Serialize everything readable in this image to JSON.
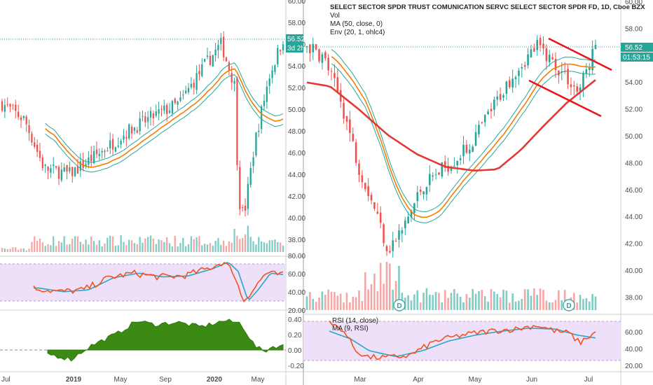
{
  "colors": {
    "up": "#26a69a",
    "down": "#ef5350",
    "vol_up": "#80cbc4",
    "vol_down": "#f4a7a5",
    "ma50": "#e53935",
    "env_mid": "#f57c00",
    "env_band": "#26a69a",
    "rsi": "#f4511e",
    "rsi_ma": "#29a6c9",
    "rsi_band": "#ede0f8",
    "osc": "#3a8a13",
    "trendline": "#e8171d",
    "price_tag": "#26a69a"
  },
  "left_panel": {
    "price_tag": "56.52",
    "countdown_tag": "3d 2h",
    "price_axis_ticks": [
      "60.00",
      "58.00",
      "56.00",
      "54.00",
      "52.00",
      "50.00",
      "48.00",
      "46.00",
      "44.00",
      "42.00",
      "40.00",
      "38.00"
    ],
    "rsi_axis_ticks": [
      "80.00",
      "60.00",
      "40.00",
      "20.00"
    ],
    "osc_axis_ticks": [
      "0.40",
      "0.20",
      "0.00",
      "-0.20"
    ],
    "time_labels": [
      "Jul",
      "2019",
      "May",
      "Sep",
      "2020",
      "May"
    ]
  },
  "right_panel": {
    "legend_title": "SELECT SECTOR SPDR TRUST COMUNICATION SERVC SELECT SECTOR SPDR FD, 1D, Cboe BZX",
    "legend_vol": "Vol",
    "legend_ma": "MA (50, close, 0)",
    "legend_env": "Env (20, 1, ohlc4)",
    "rsi_legend_1": "RSI (14, close)",
    "rsi_legend_2": "MA (9, RSI)",
    "price_tag": "56.52",
    "countdown_tag": "01:53:15",
    "dividend_marker": "D",
    "price_axis_ticks": [
      "60.00",
      "58.00",
      "56.00",
      "54.00",
      "52.00",
      "50.00",
      "48.00",
      "46.00",
      "44.00",
      "42.00",
      "40.00",
      "38.00"
    ],
    "rsi_axis_ticks": [
      "60.00",
      "40.00",
      "20.00"
    ],
    "time_labels": [
      "Mar",
      "Apr",
      "May",
      "Jun",
      "Jul"
    ]
  },
  "chart_data": [
    {
      "type": "candlestick",
      "title": "",
      "timeframe": "weekly (approx.)",
      "x": [
        "2018-07",
        "2018-09",
        "2018-11",
        "2019-01",
        "2019-03",
        "2019-05",
        "2019-07",
        "2019-09",
        "2019-11",
        "2020-01",
        "2020-02",
        "2020-03",
        "2020-04",
        "2020-05",
        "2020-06",
        "2020-07"
      ],
      "close_trend": [
        49.5,
        47.0,
        44.0,
        44.0,
        46.5,
        47.5,
        49.5,
        49.0,
        52.0,
        55.0,
        54.0,
        41.0,
        46.0,
        51.0,
        55.0,
        56.52
      ],
      "ylim": [
        37,
        60
      ],
      "last_price": 56.52,
      "overlays": [
        "Envelope (20, 1, ohlc4)"
      ],
      "indicators": [
        {
          "name": "RSI",
          "ylim": [
            20,
            80
          ],
          "values": [
            42,
            38,
            40,
            48,
            56,
            58,
            62,
            55,
            58,
            68,
            70,
            28,
            45,
            55,
            62,
            60
          ]
        },
        {
          "name": "Oscillator",
          "ylim": [
            -0.25,
            0.45
          ],
          "values": [
            -0.02,
            -0.05,
            0.02,
            0.1,
            0.25,
            0.32,
            0.35,
            0.36,
            0.3,
            0.38,
            0.35,
            0.0,
            -0.01,
            0.02,
            0.05,
            0.05
          ]
        }
      ]
    },
    {
      "type": "candlestick",
      "title": "SELECT SECTOR SPDR TRUST COMUNICATION SERVC SELECT SECTOR SPDR FD, 1D, Cboe BZX",
      "timeframe": "1D",
      "x": [
        "2020-02-15",
        "2020-03-01",
        "2020-03-15",
        "2020-03-23",
        "2020-04-01",
        "2020-04-15",
        "2020-05-01",
        "2020-05-15",
        "2020-06-01",
        "2020-06-10",
        "2020-06-22",
        "2020-06-29",
        "2020-07-06"
      ],
      "close_trend": [
        56.0,
        53.0,
        45.0,
        40.0,
        43.0,
        47.0,
        49.5,
        51.5,
        54.0,
        56.5,
        55.0,
        52.5,
        56.52
      ],
      "ylim": [
        36.5,
        60
      ],
      "last_price": 56.52,
      "ma50": [
        53.5,
        53.0,
        51.0,
        48.5,
        47.5,
        47.0,
        46.7,
        46.7,
        48.0,
        50.0,
        51.5,
        52.5,
        53.5
      ],
      "trendlines": [
        {
          "name": "upper channel",
          "from": [
            "2020-06-10",
            56.5
          ],
          "to": [
            "2020-07-08",
            54.5
          ]
        },
        {
          "name": "lower channel",
          "from": [
            "2020-06-01",
            54.0
          ],
          "to": [
            "2020-07-08",
            51.5
          ]
        }
      ],
      "indicators": [
        {
          "name": "RSI (14, close)",
          "ylim": [
            20,
            80
          ],
          "values": [
            62,
            45,
            30,
            28,
            36,
            44,
            55,
            58,
            62,
            66,
            60,
            45,
            60
          ]
        },
        {
          "name": "MA (9, RSI)",
          "values": [
            58,
            50,
            38,
            32,
            35,
            42,
            52,
            57,
            60,
            63,
            61,
            52,
            53
          ]
        }
      ]
    }
  ]
}
